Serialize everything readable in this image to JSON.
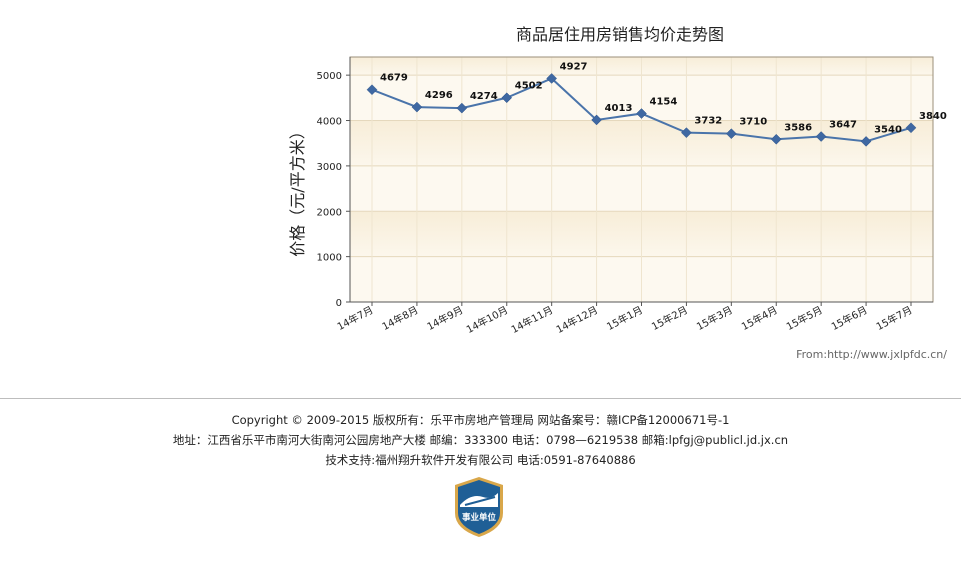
{
  "chart_data": {
    "type": "line",
    "title": "商品居住用房销售均价走势图",
    "ylabel": "价格（元/平方米）",
    "xlabel": "",
    "categories": [
      "14年7月",
      "14年8月",
      "14年9月",
      "14年10月",
      "14年11月",
      "14年12月",
      "15年1月",
      "15年2月",
      "15年3月",
      "15年4月",
      "15年5月",
      "15年6月",
      "15年7月"
    ],
    "values": [
      4679,
      4296,
      4274,
      4502,
      4927,
      4013,
      4154,
      3732,
      3710,
      3586,
      3647,
      3540,
      3840
    ],
    "yticks": [
      0,
      1000,
      2000,
      3000,
      4000,
      5000
    ],
    "ylim": [
      0,
      5400
    ],
    "grid": true,
    "legend": "none",
    "line_color": "#4a74aa",
    "marker": "diamond"
  },
  "source": "From:http://www.jxlpfdc.cn/",
  "footer": {
    "line1": "Copyright © 2009-2015 版权所有：乐平市房地产管理局 网站备案号：赣ICP备12000671号-1",
    "line2": "地址：江西省乐平市南河大街南河公园房地产大楼 邮编：333300 电话：0798—6219538 邮箱:lpfgj@publicl.jd.jx.cn",
    "line3_prefix": "技术支持:",
    "line3_company": "福州翔升软件开发有限公司",
    "line3_suffix": " 电话:0591-87640886"
  },
  "badge": {
    "text": "事业单位"
  }
}
